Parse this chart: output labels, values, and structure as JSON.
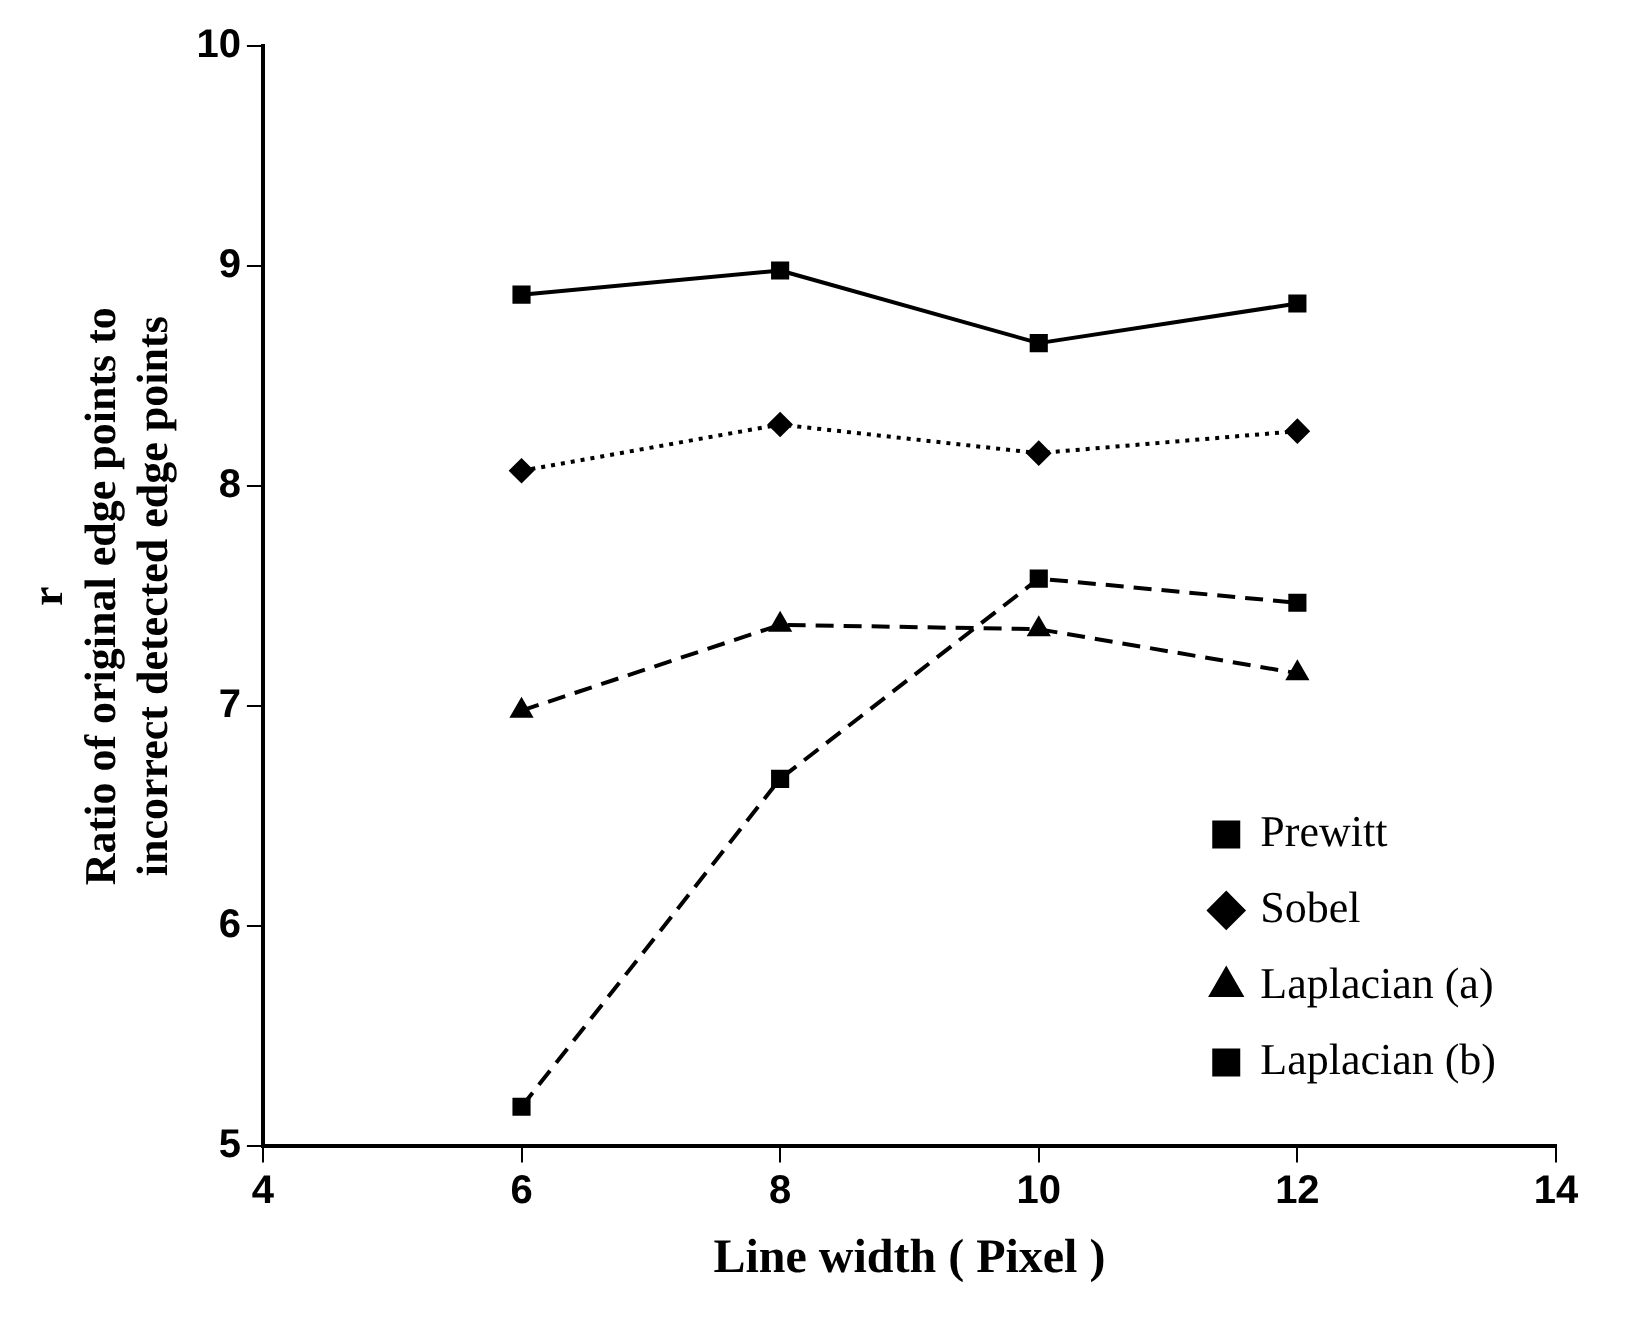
{
  "chart_data": {
    "type": "line",
    "xlabel": "Line width ( Pixel )",
    "ylabel": "r\nRatio of original edge points to\nincorrect detected edge points",
    "x": [
      6,
      8,
      10,
      12
    ],
    "xlim": [
      4,
      14
    ],
    "xticks": [
      4,
      6,
      8,
      10,
      12,
      14
    ],
    "ylim": [
      5,
      10
    ],
    "yticks": [
      5,
      6,
      7,
      8,
      9,
      10
    ],
    "grid": false,
    "legend": "bottom right",
    "series": [
      {
        "name": "Prewitt",
        "color": "#000000",
        "marker": "square",
        "line_style": "solid",
        "values": [
          8.87,
          8.98,
          8.65,
          8.83
        ]
      },
      {
        "name": "Sobel",
        "color": "#000000",
        "marker": "diamond",
        "line_style": "dotted",
        "values": [
          8.07,
          8.28,
          8.15,
          8.25
        ]
      },
      {
        "name": "Laplacian (a)",
        "color": "#000000",
        "marker": "triangle",
        "line_style": "dashed",
        "values": [
          6.98,
          7.37,
          7.35,
          7.15
        ]
      },
      {
        "name": "Laplacian (b)",
        "color": "#000000",
        "marker": "square",
        "line_style": "dashed",
        "values": [
          5.18,
          6.67,
          7.58,
          7.47
        ]
      }
    ]
  }
}
